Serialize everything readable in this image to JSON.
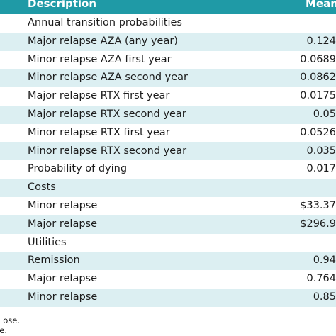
{
  "table": {
    "header": {
      "description": "Description",
      "mean": "Mean"
    },
    "rows": [
      {
        "description": "Annual transition probabilities",
        "mean": ""
      },
      {
        "description": "Major relapse AZA (any year)",
        "mean": "0.124"
      },
      {
        "description": "Minor relapse AZA first year",
        "mean": "0.0689"
      },
      {
        "description": "Minor relapse AZA second year",
        "mean": "0.0862"
      },
      {
        "description": "Major relapse RTX first year",
        "mean": "0.0175"
      },
      {
        "description": "Major relapse RTX second year",
        "mean": "0.05"
      },
      {
        "description": "Minor relapse RTX first year",
        "mean": "0.0526"
      },
      {
        "description": "Minor relapse RTX second year",
        "mean": "0.035"
      },
      {
        "description": "Probability of dying",
        "mean": "0.017"
      },
      {
        "description": "Costs",
        "mean": ""
      },
      {
        "description": "Minor relapse",
        "mean": "$33.37"
      },
      {
        "description": "Major relapse",
        "mean": "$296.9"
      },
      {
        "description": "Utilities",
        "mean": ""
      },
      {
        "description": "Remission",
        "mean": "0.94"
      },
      {
        "description": "Major relapse",
        "mean": "0.764"
      },
      {
        "description": "Minor relapse",
        "mean": "0.85"
      }
    ]
  },
  "footnotes": {
    "line1": "ose.",
    "line2": "e."
  },
  "colors": {
    "header_bg": "#1f9aa6",
    "stripe_bg": "#dceff2",
    "text": "#1c1c1c"
  }
}
